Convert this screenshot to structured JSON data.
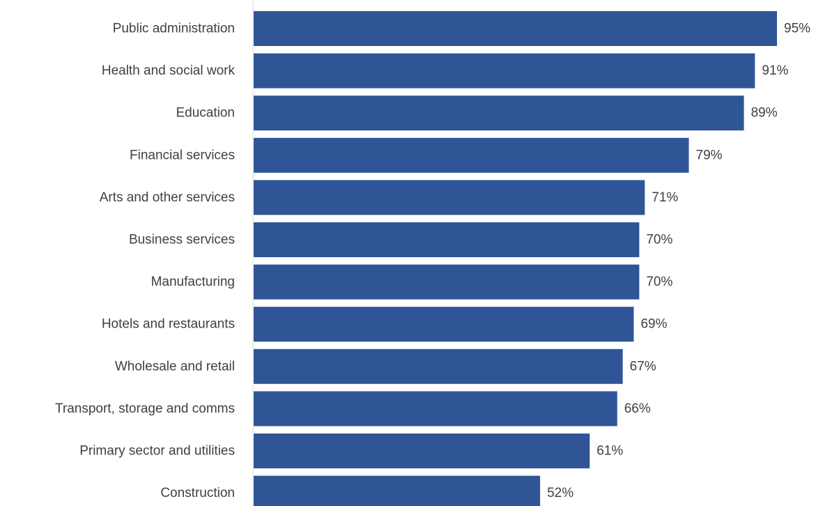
{
  "chart_data": {
    "type": "bar",
    "orientation": "horizontal",
    "categories": [
      "Public administration",
      "Health and social work",
      "Education",
      "Financial services",
      "Arts and other services",
      "Business services",
      "Manufacturing",
      "Hotels and restaurants",
      "Wholesale and retail",
      "Transport, storage and comms",
      "Primary sector and utilities",
      "Construction"
    ],
    "values": [
      95,
      91,
      89,
      79,
      71,
      70,
      70,
      69,
      67,
      66,
      61,
      52
    ],
    "value_labels": [
      "95%",
      "91%",
      "89%",
      "79%",
      "71%",
      "70%",
      "70%",
      "69%",
      "67%",
      "66%",
      "61%",
      "52%"
    ],
    "title": "",
    "xlabel": "",
    "ylabel": "",
    "xlim": [
      0,
      100
    ],
    "grid": false,
    "legend": "none",
    "bar_color": "#2F5597",
    "axis_color": "#D9D9D9",
    "text_color": "#404040"
  }
}
